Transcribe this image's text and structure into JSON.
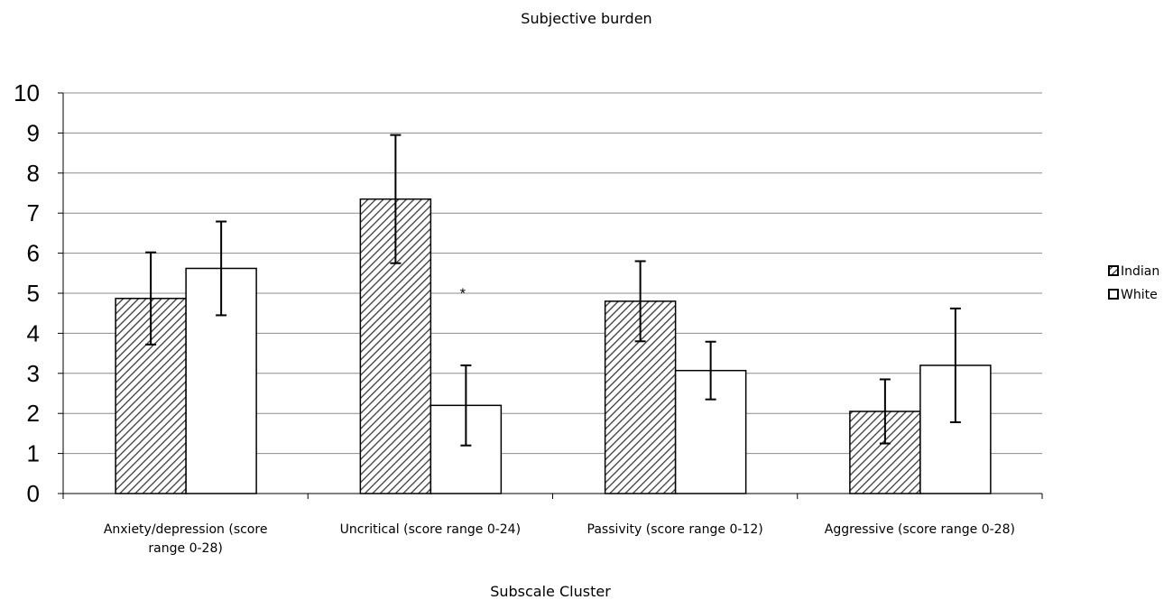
{
  "chart_data": {
    "type": "bar",
    "title": "Subjective burden",
    "xlabel": "Subscale Cluster",
    "ylabel": "",
    "ylim": [
      0,
      10
    ],
    "yticks": [
      "0",
      "1",
      "2",
      "3",
      "4",
      "5",
      "6",
      "7",
      "8",
      "9",
      "10"
    ],
    "categories": [
      [
        "Anxiety/depression (score",
        "range 0-28)"
      ],
      [
        "Uncritical (score range 0-24)"
      ],
      [
        "Passivity (score range 0-12)"
      ],
      [
        "Aggressive (score range 0-28)"
      ]
    ],
    "series": [
      {
        "name": "Indian",
        "values": [
          4.87,
          7.35,
          4.8,
          2.05
        ],
        "error": [
          1.15,
          1.6,
          1.0,
          0.8
        ],
        "pattern": "hatch",
        "color": "#000000"
      },
      {
        "name": "White",
        "values": [
          5.62,
          2.2,
          3.07,
          3.2
        ],
        "error": [
          1.17,
          1.0,
          0.72,
          1.42
        ],
        "pattern": "solid",
        "color": "#ffffff"
      }
    ],
    "annotations": [
      {
        "text": "*",
        "category": 1,
        "y": 5.1
      }
    ],
    "grid": true,
    "legend": "right"
  }
}
